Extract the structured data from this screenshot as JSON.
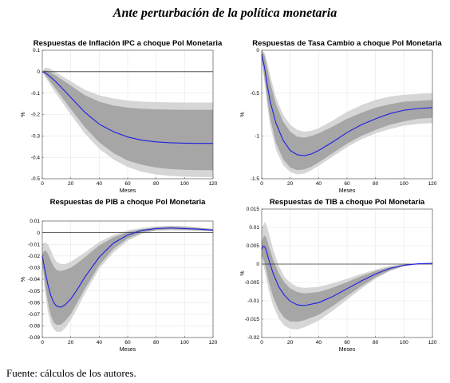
{
  "figure": {
    "title": "Ante perturbación de la política monetaria",
    "source": "Fuente: cálculos de los autores."
  },
  "colors": {
    "outer_band": "#d6d6d6",
    "inner_band": "#a6a6a6",
    "median_line": "#1f1fe6",
    "zero_line": "#333333",
    "grid": "#e6e6e6"
  },
  "chart_data": [
    {
      "type": "area",
      "title": "Respuestas de Inflación IPC a choque Pol Monetaria",
      "xlabel": "Meses",
      "ylabel": "%",
      "xlim": [
        0,
        120
      ],
      "ylim": [
        -0.5,
        0.1
      ],
      "xticks": [
        "0",
        "20",
        "40",
        "60",
        "80",
        "100",
        "120"
      ],
      "yticks": [
        "0.1",
        "0",
        "-0.1",
        "-0.2",
        "-0.3",
        "-0.4",
        "-0.5"
      ],
      "grid": true,
      "x": [
        0,
        2,
        5,
        10,
        20,
        30,
        40,
        50,
        60,
        70,
        80,
        90,
        100,
        110,
        120
      ],
      "series": [
        {
          "role": "outer_upper",
          "values": [
            0,
            0.02,
            0.015,
            -0.005,
            -0.045,
            -0.085,
            -0.11,
            -0.125,
            -0.135,
            -0.14,
            -0.142,
            -0.143,
            -0.144,
            -0.144,
            -0.144
          ]
        },
        {
          "role": "inner_upper",
          "values": [
            0,
            0.008,
            0.0,
            -0.02,
            -0.065,
            -0.11,
            -0.14,
            -0.158,
            -0.168,
            -0.173,
            -0.176,
            -0.177,
            -0.178,
            -0.178,
            -0.178
          ]
        },
        {
          "role": "median",
          "values": [
            0,
            -0.005,
            -0.02,
            -0.05,
            -0.12,
            -0.19,
            -0.245,
            -0.28,
            -0.305,
            -0.32,
            -0.328,
            -0.332,
            -0.334,
            -0.335,
            -0.335
          ]
        },
        {
          "role": "inner_lower",
          "values": [
            0,
            -0.015,
            -0.04,
            -0.085,
            -0.175,
            -0.26,
            -0.33,
            -0.38,
            -0.415,
            -0.435,
            -0.448,
            -0.455,
            -0.458,
            -0.46,
            -0.46
          ]
        },
        {
          "role": "outer_lower",
          "values": [
            0,
            -0.025,
            -0.055,
            -0.105,
            -0.2,
            -0.29,
            -0.36,
            -0.41,
            -0.445,
            -0.468,
            -0.48,
            -0.487,
            -0.49,
            -0.492,
            -0.492
          ]
        }
      ]
    },
    {
      "type": "area",
      "title": "Respuestas de Tasa Cambio a choque Pol Monetaria",
      "xlabel": "Meses",
      "ylabel": "%",
      "xlim": [
        0,
        120
      ],
      "ylim": [
        -1.5,
        0
      ],
      "xticks": [
        "0",
        "20",
        "40",
        "60",
        "80",
        "100",
        "120"
      ],
      "yticks": [
        "0",
        "-0.5",
        "-1",
        "-1.5"
      ],
      "grid": true,
      "x": [
        0,
        2,
        4,
        6,
        10,
        15,
        20,
        25,
        30,
        35,
        40,
        50,
        60,
        70,
        80,
        90,
        100,
        110,
        120
      ],
      "series": [
        {
          "role": "outer_upper",
          "values": [
            0,
            -0.03,
            -0.15,
            -0.3,
            -0.55,
            -0.75,
            -0.87,
            -0.93,
            -0.95,
            -0.94,
            -0.91,
            -0.82,
            -0.72,
            -0.64,
            -0.58,
            -0.54,
            -0.52,
            -0.51,
            -0.5
          ]
        },
        {
          "role": "inner_upper",
          "values": [
            0,
            -0.06,
            -0.22,
            -0.38,
            -0.63,
            -0.83,
            -0.95,
            -1.01,
            -1.02,
            -1.0,
            -0.97,
            -0.89,
            -0.8,
            -0.73,
            -0.67,
            -0.63,
            -0.6,
            -0.59,
            -0.58
          ]
        },
        {
          "role": "median",
          "values": [
            -0.05,
            -0.2,
            -0.42,
            -0.6,
            -0.85,
            -1.05,
            -1.17,
            -1.22,
            -1.23,
            -1.21,
            -1.17,
            -1.07,
            -0.96,
            -0.87,
            -0.8,
            -0.74,
            -0.7,
            -0.68,
            -0.67
          ]
        },
        {
          "role": "inner_lower",
          "values": [
            -0.1,
            -0.32,
            -0.58,
            -0.8,
            -1.08,
            -1.27,
            -1.37,
            -1.4,
            -1.39,
            -1.36,
            -1.31,
            -1.2,
            -1.09,
            -1.0,
            -0.93,
            -0.87,
            -0.83,
            -0.8,
            -0.79
          ]
        },
        {
          "role": "outer_lower",
          "values": [
            -0.12,
            -0.38,
            -0.66,
            -0.88,
            -1.16,
            -1.34,
            -1.42,
            -1.45,
            -1.44,
            -1.4,
            -1.35,
            -1.24,
            -1.13,
            -1.04,
            -0.97,
            -0.92,
            -0.88,
            -0.86,
            -0.85
          ]
        }
      ]
    },
    {
      "type": "area",
      "title": "Respuestas de PIB a choque Pol Monetaria",
      "xlabel": "Meses",
      "ylabel": "%",
      "xlim": [
        0,
        120
      ],
      "ylim": [
        -0.09,
        0.01
      ],
      "xticks": [
        "0",
        "20",
        "40",
        "60",
        "80",
        "100",
        "120"
      ],
      "yticks": [
        "0.01",
        "0",
        "-0.01",
        "-0.02",
        "-0.03",
        "-0.04",
        "-0.05",
        "-0.06",
        "-0.07",
        "-0.08",
        "-0.09"
      ],
      "grid": true,
      "x": [
        0,
        2,
        4,
        6,
        8,
        10,
        13,
        16,
        20,
        25,
        30,
        40,
        50,
        60,
        70,
        80,
        90,
        100,
        110,
        120
      ],
      "series": [
        {
          "role": "outer_upper",
          "values": [
            -0.012,
            -0.008,
            -0.01,
            -0.015,
            -0.021,
            -0.025,
            -0.027,
            -0.027,
            -0.025,
            -0.021,
            -0.017,
            -0.008,
            -0.002,
            0.002,
            0.004,
            0.0055,
            0.006,
            0.0055,
            0.0045,
            0.003
          ]
        },
        {
          "role": "inner_upper",
          "values": [
            -0.018,
            -0.015,
            -0.018,
            -0.024,
            -0.029,
            -0.032,
            -0.033,
            -0.032,
            -0.03,
            -0.026,
            -0.021,
            -0.011,
            -0.004,
            0.0005,
            0.003,
            0.0045,
            0.0052,
            0.005,
            0.0042,
            0.0032
          ]
        },
        {
          "role": "median",
          "values": [
            -0.02,
            -0.033,
            -0.045,
            -0.054,
            -0.06,
            -0.063,
            -0.064,
            -0.062,
            -0.057,
            -0.048,
            -0.038,
            -0.021,
            -0.009,
            -0.002,
            0.002,
            0.0035,
            0.004,
            0.0035,
            0.003,
            0.0022
          ]
        },
        {
          "role": "inner_lower",
          "values": [
            -0.025,
            -0.045,
            -0.06,
            -0.071,
            -0.077,
            -0.079,
            -0.079,
            -0.076,
            -0.07,
            -0.059,
            -0.048,
            -0.028,
            -0.014,
            -0.005,
            0.0,
            0.0022,
            0.0028,
            0.0025,
            0.002,
            0.0015
          ]
        },
        {
          "role": "outer_lower",
          "values": [
            -0.028,
            -0.052,
            -0.068,
            -0.078,
            -0.083,
            -0.085,
            -0.085,
            -0.082,
            -0.075,
            -0.064,
            -0.052,
            -0.031,
            -0.017,
            -0.007,
            -0.001,
            0.0015,
            0.002,
            0.0018,
            0.0015,
            0.001
          ]
        }
      ]
    },
    {
      "type": "area",
      "title": "Respuestas de TIB a choque Pol Monetaria",
      "xlabel": "Meses",
      "ylabel": "%",
      "xlim": [
        0,
        120
      ],
      "ylim": [
        -0.02,
        0.015
      ],
      "xticks": [
        "0",
        "20",
        "40",
        "60",
        "80",
        "100",
        "120"
      ],
      "yticks": [
        "0.015",
        "0.01",
        "0.005",
        "0",
        "-0.005",
        "-0.01",
        "-0.015",
        "-0.02"
      ],
      "grid": true,
      "x": [
        0,
        1,
        2,
        3,
        5,
        8,
        12,
        16,
        20,
        25,
        30,
        40,
        50,
        60,
        70,
        80,
        90,
        100,
        110,
        120
      ],
      "series": [
        {
          "role": "outer_upper",
          "values": [
            0.009,
            0.0105,
            0.0115,
            0.011,
            0.0085,
            0.004,
            -0.0005,
            -0.0035,
            -0.005,
            -0.0062,
            -0.0065,
            -0.0062,
            -0.0052,
            -0.004,
            -0.0027,
            -0.0015,
            -0.0005,
            0.0,
            0.0002,
            0.0003
          ]
        },
        {
          "role": "inner_upper",
          "values": [
            0.006,
            0.0072,
            0.0078,
            0.0074,
            0.005,
            0.0012,
            -0.0025,
            -0.005,
            -0.0066,
            -0.0076,
            -0.008,
            -0.0076,
            -0.0064,
            -0.0049,
            -0.0033,
            -0.0019,
            -0.0008,
            -0.0002,
            0.0001,
            0.0002
          ]
        },
        {
          "role": "median",
          "values": [
            0.004,
            0.0048,
            0.0048,
            0.004,
            0.0012,
            -0.0025,
            -0.0062,
            -0.0085,
            -0.0101,
            -0.0111,
            -0.0113,
            -0.0105,
            -0.0088,
            -0.0067,
            -0.0046,
            -0.0027,
            -0.0012,
            -0.0003,
            0.0001,
            0.0002
          ]
        },
        {
          "role": "inner_lower",
          "values": [
            0.002,
            0.0015,
            0.0005,
            -0.0012,
            -0.0048,
            -0.0088,
            -0.0125,
            -0.0147,
            -0.0156,
            -0.0157,
            -0.0153,
            -0.0138,
            -0.0114,
            -0.0087,
            -0.006,
            -0.0036,
            -0.0017,
            -0.0005,
            0.0,
            0.0001
          ]
        },
        {
          "role": "outer_lower",
          "values": [
            0.001,
            0.0,
            -0.0015,
            -0.0035,
            -0.0072,
            -0.0112,
            -0.0148,
            -0.0168,
            -0.0176,
            -0.0178,
            -0.0172,
            -0.0154,
            -0.0127,
            -0.0097,
            -0.0067,
            -0.004,
            -0.0019,
            -0.0006,
            -0.0001,
            0.0
          ]
        }
      ]
    }
  ]
}
